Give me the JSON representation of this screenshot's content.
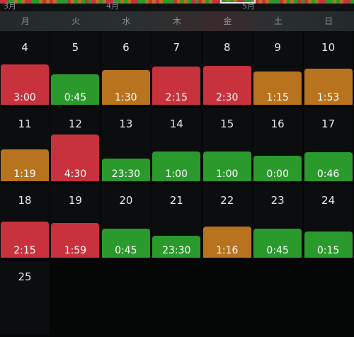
{
  "timeline": {
    "months": [
      "3月",
      "4月",
      "5月"
    ],
    "strip_colors": [
      "#c8323c",
      "#2b9a2c",
      "#b8731e",
      "#2b9a2c",
      "#c8323c",
      "#b8731e",
      "#2b9a2c",
      "#2b9a2c",
      "#c8323c",
      "#b8731e"
    ]
  },
  "weekdays": [
    "月",
    "火",
    "水",
    "木",
    "金",
    "土",
    "日"
  ],
  "weeks": [
    {
      "days": [
        {
          "day": "4",
          "duration": "3:00",
          "status": "red",
          "level": 0.55
        },
        {
          "day": "5",
          "duration": "0:45",
          "status": "green",
          "level": 0.41
        },
        {
          "day": "6",
          "duration": "1:30",
          "status": "orange",
          "level": 0.47
        },
        {
          "day": "7",
          "duration": "2:15",
          "status": "red",
          "level": 0.52
        },
        {
          "day": "8",
          "duration": "2:30",
          "status": "red",
          "level": 0.53
        },
        {
          "day": "9",
          "duration": "1:15",
          "status": "orange",
          "level": 0.45
        },
        {
          "day": "10",
          "duration": "1:53",
          "status": "orange",
          "level": 0.49
        }
      ]
    },
    {
      "days": [
        {
          "day": "11",
          "duration": "1:19",
          "status": "orange",
          "level": 0.43
        },
        {
          "day": "12",
          "duration": "4:30",
          "status": "red",
          "level": 0.63
        },
        {
          "day": "13",
          "duration": "23:30",
          "status": "green",
          "level": 0.31
        },
        {
          "day": "14",
          "duration": "1:00",
          "status": "green",
          "level": 0.4
        },
        {
          "day": "15",
          "duration": "1:00",
          "status": "green",
          "level": 0.4
        },
        {
          "day": "16",
          "duration": "0:00",
          "status": "green",
          "level": 0.35
        },
        {
          "day": "17",
          "duration": "0:46",
          "status": "green",
          "level": 0.39
        }
      ]
    },
    {
      "days": [
        {
          "day": "18",
          "duration": "2:15",
          "status": "red",
          "level": 0.49
        },
        {
          "day": "19",
          "duration": "1:59",
          "status": "red",
          "level": 0.47
        },
        {
          "day": "20",
          "duration": "0:45",
          "status": "green",
          "level": 0.39
        },
        {
          "day": "21",
          "duration": "23:30",
          "status": "green",
          "level": 0.3
        },
        {
          "day": "22",
          "duration": "1:16",
          "status": "orange",
          "level": 0.42
        },
        {
          "day": "23",
          "duration": "0:45",
          "status": "green",
          "level": 0.39
        },
        {
          "day": "24",
          "duration": "0:15",
          "status": "green",
          "level": 0.36
        }
      ]
    },
    {
      "days": [
        {
          "day": "25"
        }
      ]
    }
  ]
}
